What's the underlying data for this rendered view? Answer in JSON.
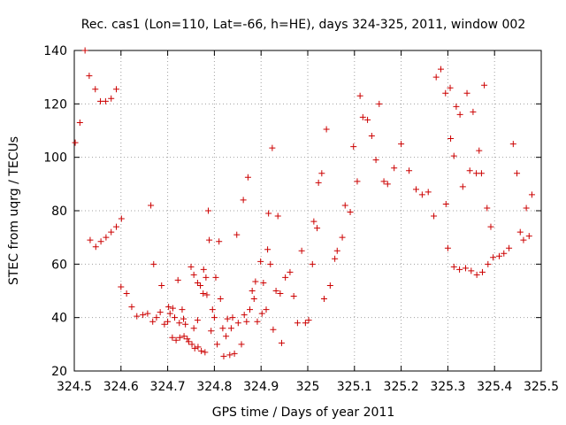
{
  "chart_data": {
    "type": "scatter",
    "title": "Rec. cas1 (Lon=110, Lat=-66, h=HE), days 324-325, 2011, window 002",
    "xlabel": "GPS time / Days of year 2011",
    "ylabel": "STEC from uqrg / TECUs",
    "xlim": [
      324.5,
      325.5
    ],
    "ylim": [
      20,
      140
    ],
    "x_ticks": [
      324.5,
      324.6,
      324.7,
      324.8,
      324.9,
      325.0,
      325.1,
      325.2,
      325.3,
      325.4,
      325.5
    ],
    "x_tick_labels": [
      "324.5",
      "324.6",
      "324.7",
      "324.8",
      "324.9",
      "325",
      "325.1",
      "325.2",
      "325.3",
      "325.4",
      "325.5"
    ],
    "y_ticks": [
      20,
      40,
      60,
      80,
      100,
      120,
      140
    ],
    "y_tick_labels": [
      "20",
      "40",
      "60",
      "80",
      "100",
      "120",
      "140"
    ],
    "grid": true,
    "marker": "plus",
    "color": "#cc0000",
    "points": [
      [
        324.502,
        105.5
      ],
      [
        324.512,
        113
      ],
      [
        324.523,
        140
      ],
      [
        324.532,
        130.5
      ],
      [
        324.545,
        125.5
      ],
      [
        324.556,
        121
      ],
      [
        324.567,
        121
      ],
      [
        324.579,
        122
      ],
      [
        324.59,
        125.5
      ],
      [
        324.534,
        69
      ],
      [
        324.546,
        66.5
      ],
      [
        324.557,
        68.5
      ],
      [
        324.568,
        70
      ],
      [
        324.579,
        72
      ],
      [
        324.59,
        74
      ],
      [
        324.601,
        77
      ],
      [
        324.6,
        51.5
      ],
      [
        324.612,
        49
      ],
      [
        324.623,
        44
      ],
      [
        324.634,
        40.5
      ],
      [
        324.647,
        41
      ],
      [
        324.657,
        41.5
      ],
      [
        324.664,
        82
      ],
      [
        324.67,
        60
      ],
      [
        324.668,
        38.5
      ],
      [
        324.676,
        40
      ],
      [
        324.684,
        42
      ],
      [
        324.687,
        52
      ],
      [
        324.693,
        37.5
      ],
      [
        324.702,
        44
      ],
      [
        324.705,
        41.5
      ],
      [
        324.711,
        43.5
      ],
      [
        324.715,
        40
      ],
      [
        324.722,
        54
      ],
      [
        324.725,
        38
      ],
      [
        324.731,
        43
      ],
      [
        324.734,
        39.5
      ],
      [
        324.738,
        37.5
      ],
      [
        324.742,
        32
      ],
      [
        324.75,
        59
      ],
      [
        324.7,
        38.5
      ],
      [
        324.71,
        32.5
      ],
      [
        324.718,
        31.5
      ],
      [
        324.726,
        32.5
      ],
      [
        324.735,
        33
      ],
      [
        324.745,
        31
      ],
      [
        324.752,
        30
      ],
      [
        324.758,
        28.5
      ],
      [
        324.765,
        29
      ],
      [
        324.772,
        27.5
      ],
      [
        324.78,
        27
      ],
      [
        324.756,
        36
      ],
      [
        324.764,
        39
      ],
      [
        324.77,
        52
      ],
      [
        324.777,
        58
      ],
      [
        324.782,
        55
      ],
      [
        324.756,
        56
      ],
      [
        324.764,
        53
      ],
      [
        324.776,
        49
      ],
      [
        324.784,
        48.5
      ],
      [
        324.787,
        80
      ],
      [
        324.789,
        69
      ],
      [
        324.793,
        35
      ],
      [
        324.796,
        43
      ],
      [
        324.8,
        40
      ],
      [
        324.803,
        55
      ],
      [
        324.806,
        30
      ],
      [
        324.81,
        68.5
      ],
      [
        324.813,
        47
      ],
      [
        324.818,
        36
      ],
      [
        324.82,
        25.5
      ],
      [
        324.825,
        33
      ],
      [
        324.828,
        39.5
      ],
      [
        324.833,
        26
      ],
      [
        324.836,
        36
      ],
      [
        324.839,
        40
      ],
      [
        324.843,
        26.5
      ],
      [
        324.848,
        71
      ],
      [
        324.851,
        38
      ],
      [
        324.858,
        30
      ],
      [
        324.862,
        84
      ],
      [
        324.864,
        41
      ],
      [
        324.869,
        38.5
      ],
      [
        324.872,
        92.5
      ],
      [
        324.876,
        43
      ],
      [
        324.881,
        50
      ],
      [
        324.885,
        47
      ],
      [
        324.888,
        53.5
      ],
      [
        324.892,
        38.5
      ],
      [
        324.899,
        61
      ],
      [
        324.902,
        41.5
      ],
      [
        324.905,
        53
      ],
      [
        324.911,
        43
      ],
      [
        324.914,
        65.5
      ],
      [
        324.916,
        79
      ],
      [
        324.92,
        60
      ],
      [
        324.924,
        103.5
      ],
      [
        324.926,
        35.5
      ],
      [
        324.932,
        50
      ],
      [
        324.936,
        78
      ],
      [
        324.944,
        30.5
      ],
      [
        324.941,
        49
      ],
      [
        324.952,
        55
      ],
      [
        324.962,
        57
      ],
      [
        324.97,
        48
      ],
      [
        324.978,
        38
      ],
      [
        324.987,
        65
      ],
      [
        324.995,
        38
      ],
      [
        325.002,
        39
      ],
      [
        325.01,
        60
      ],
      [
        325.013,
        76
      ],
      [
        325.02,
        73.5
      ],
      [
        325.023,
        90.5
      ],
      [
        325.03,
        94
      ],
      [
        325.035,
        47
      ],
      [
        325.04,
        110.5
      ],
      [
        325.048,
        52
      ],
      [
        325.058,
        62
      ],
      [
        325.063,
        65
      ],
      [
        325.074,
        70
      ],
      [
        325.08,
        82
      ],
      [
        325.091,
        79.5
      ],
      [
        325.098,
        104
      ],
      [
        325.106,
        91
      ],
      [
        325.112,
        123
      ],
      [
        325.118,
        115
      ],
      [
        325.128,
        114
      ],
      [
        325.137,
        108
      ],
      [
        325.146,
        99
      ],
      [
        325.153,
        120
      ],
      [
        325.163,
        91
      ],
      [
        325.171,
        90
      ],
      [
        325.185,
        96
      ],
      [
        325.2,
        105
      ],
      [
        325.217,
        95
      ],
      [
        325.232,
        88
      ],
      [
        325.245,
        86
      ],
      [
        325.258,
        87
      ],
      [
        325.27,
        78
      ],
      [
        325.275,
        130
      ],
      [
        325.285,
        133
      ],
      [
        325.295,
        124
      ],
      [
        325.305,
        126
      ],
      [
        325.296,
        82.5
      ],
      [
        325.306,
        107
      ],
      [
        325.313,
        100.5
      ],
      [
        325.318,
        119
      ],
      [
        325.326,
        116
      ],
      [
        325.332,
        89
      ],
      [
        325.341,
        124
      ],
      [
        325.347,
        95
      ],
      [
        325.354,
        117
      ],
      [
        325.361,
        94
      ],
      [
        325.367,
        102.5
      ],
      [
        325.372,
        94
      ],
      [
        325.378,
        127
      ],
      [
        325.384,
        81
      ],
      [
        325.392,
        74
      ],
      [
        325.3,
        66
      ],
      [
        325.313,
        59
      ],
      [
        325.325,
        58
      ],
      [
        325.338,
        58.5
      ],
      [
        325.35,
        57.5
      ],
      [
        325.362,
        56
      ],
      [
        325.374,
        57
      ],
      [
        325.386,
        60
      ],
      [
        325.397,
        62.5
      ],
      [
        325.41,
        63
      ],
      [
        325.42,
        64
      ],
      [
        325.431,
        66
      ],
      [
        325.44,
        105
      ],
      [
        325.448,
        94
      ],
      [
        325.455,
        72
      ],
      [
        325.462,
        69
      ],
      [
        325.468,
        81
      ],
      [
        325.474,
        70.5
      ],
      [
        325.48,
        86
      ]
    ]
  }
}
